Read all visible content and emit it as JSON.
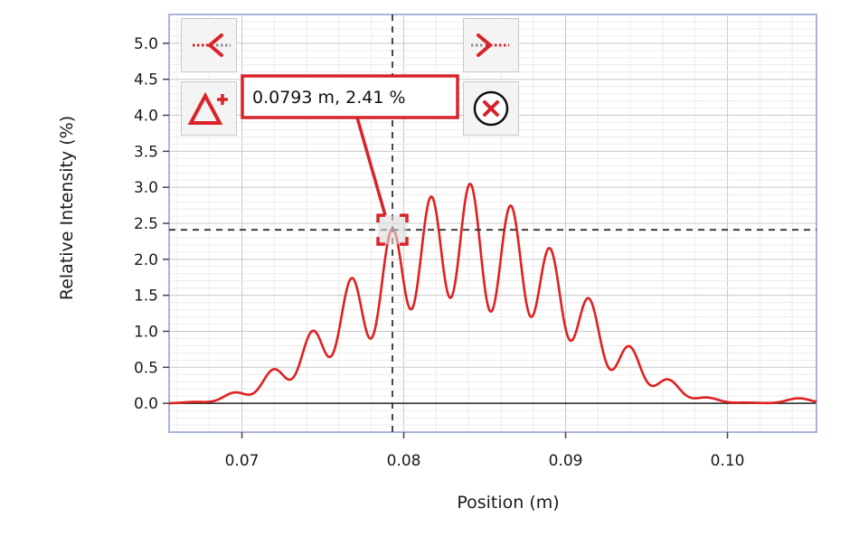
{
  "chart_data": {
    "type": "line",
    "title": "",
    "xlabel": "Position (m)",
    "ylabel": "Relative Intensity (%)",
    "xlim": [
      0.0655,
      0.1055
    ],
    "ylim": [
      -0.4,
      5.4
    ],
    "x_ticks": [
      0.07,
      0.08,
      0.09,
      0.1
    ],
    "x_tick_labels": [
      "0.07",
      "0.08",
      "0.09",
      "0.10"
    ],
    "y_ticks": [
      0.0,
      0.5,
      1.0,
      1.5,
      2.0,
      2.5,
      3.0,
      3.5,
      4.0,
      4.5,
      5.0
    ],
    "y_tick_labels": [
      "0.0",
      "0.5",
      "1.0",
      "1.5",
      "2.0",
      "2.5",
      "3.0",
      "3.5",
      "4.0",
      "4.5",
      "5.0"
    ],
    "grid": true,
    "series": [
      {
        "color": "#e02020",
        "peaks": [
          {
            "x": 0.0671,
            "y": 0.02
          },
          {
            "x": 0.0696,
            "y": 0.15
          },
          {
            "x": 0.072,
            "y": 0.47
          },
          {
            "x": 0.0744,
            "y": 1.0
          },
          {
            "x": 0.0768,
            "y": 1.73
          },
          {
            "x": 0.0793,
            "y": 2.41
          },
          {
            "x": 0.0817,
            "y": 2.85
          },
          {
            "x": 0.0841,
            "y": 3.03
          },
          {
            "x": 0.0866,
            "y": 2.73
          },
          {
            "x": 0.089,
            "y": 2.14
          },
          {
            "x": 0.0914,
            "y": 1.45
          },
          {
            "x": 0.0939,
            "y": 0.79
          },
          {
            "x": 0.0963,
            "y": 0.33
          },
          {
            "x": 0.0987,
            "y": 0.08
          },
          {
            "x": 0.1012,
            "y": 0.01
          },
          {
            "x": 0.1044,
            "y": 0.07
          }
        ]
      }
    ],
    "cursor": {
      "x": 0.0793,
      "y": 2.41,
      "label": "0.0793 m, 2.41 %"
    }
  },
  "colors": {
    "curve": "#e02020",
    "grid": "#d8d8d8",
    "frame": "#aab4dc",
    "accent": "#d9232a"
  },
  "toolbar": {
    "prev_icon": "arrow-left-dotted-icon",
    "next_icon": "arrow-right-dotted-icon",
    "delta_icon": "delta-plus-icon",
    "close_icon": "circle-x-icon"
  }
}
